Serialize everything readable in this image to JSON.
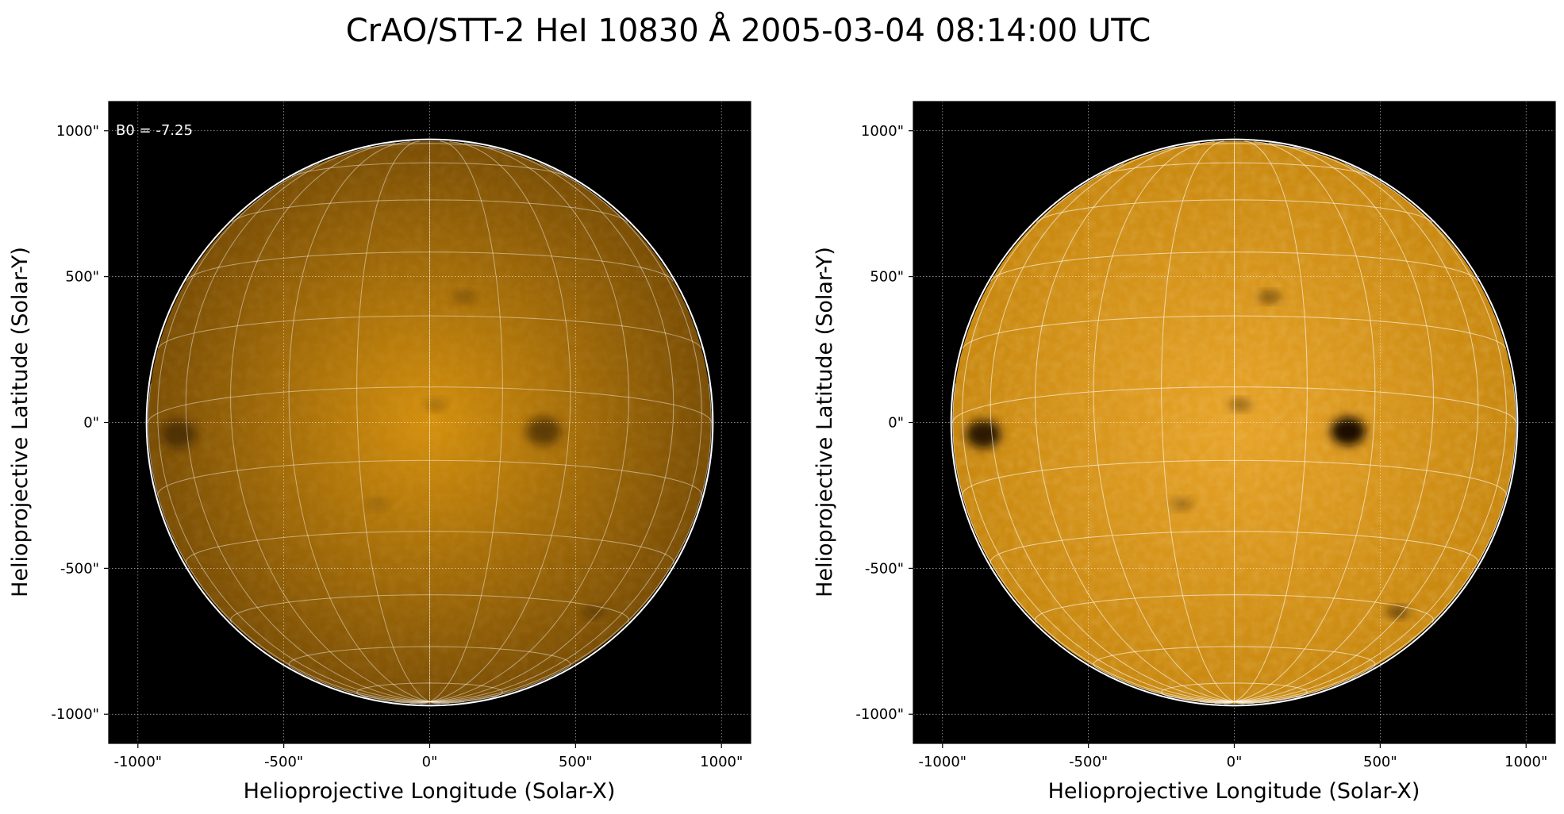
{
  "figure": {
    "title": "CrAO/STT-2 HeI 10830 Å 2005-03-04 08:14:00 UTC"
  },
  "chart_data": [
    {
      "type": "image",
      "xlabel": "Helioprojective Longitude (Solar-X)",
      "ylabel": "Helioprojective Latitude (Solar-Y)",
      "xlim": [
        -1100,
        1100
      ],
      "ylim": [
        -1100,
        1100
      ],
      "xticks": [
        -1000,
        -500,
        0,
        500,
        1000
      ],
      "yticks": [
        -1000,
        -500,
        0,
        500,
        1000
      ],
      "xtick_labels": [
        "-1000\"",
        "-500\"",
        "0\"",
        "500\"",
        "1000\""
      ],
      "ytick_labels": [
        "-1000\"",
        "-500\"",
        "0\"",
        "500\"",
        "1000\""
      ],
      "annotation": "B0 = -7.25",
      "solar_radius_arcsec": 965,
      "b0_deg": -7.25,
      "grid": true,
      "colormap": "sdoaia1600",
      "contrast": "low",
      "background_color": "#000000",
      "disk_color_center": "#d4900e",
      "disk_color_limb": "#7a4e05"
    },
    {
      "type": "image",
      "xlabel": "Helioprojective Longitude (Solar-X)",
      "ylabel": "Helioprojective Latitude (Solar-Y)",
      "xlim": [
        -1100,
        1100
      ],
      "ylim": [
        -1100,
        1100
      ],
      "xticks": [
        -1000,
        -500,
        0,
        500,
        1000
      ],
      "yticks": [
        -1000,
        -500,
        0,
        500,
        1000
      ],
      "xtick_labels": [
        "-1000\"",
        "-500\"",
        "0\"",
        "500\"",
        "1000\""
      ],
      "ytick_labels": [
        "-1000\"",
        "-500\"",
        "0\"",
        "500\"",
        "1000\""
      ],
      "solar_radius_arcsec": 965,
      "b0_deg": -7.25,
      "grid": true,
      "colormap": "sdoaia1600",
      "contrast": "high",
      "background_color": "#000000",
      "disk_color_center": "#e8a42a",
      "disk_color_limb": "#c88810"
    }
  ],
  "features": [
    {
      "name": "active-region-east-limb",
      "x": -860,
      "y": -40,
      "intensity": 0.9
    },
    {
      "name": "active-region-west",
      "x": 390,
      "y": -30,
      "intensity": 1.0
    },
    {
      "name": "filament-north",
      "x": 120,
      "y": 430,
      "intensity": 0.6
    },
    {
      "name": "filament-south-east",
      "x": 560,
      "y": -650,
      "intensity": 0.7
    },
    {
      "name": "filament-center",
      "x": 20,
      "y": 60,
      "intensity": 0.5
    },
    {
      "name": "plage-southwest",
      "x": -180,
      "y": -280,
      "intensity": 0.4
    }
  ]
}
